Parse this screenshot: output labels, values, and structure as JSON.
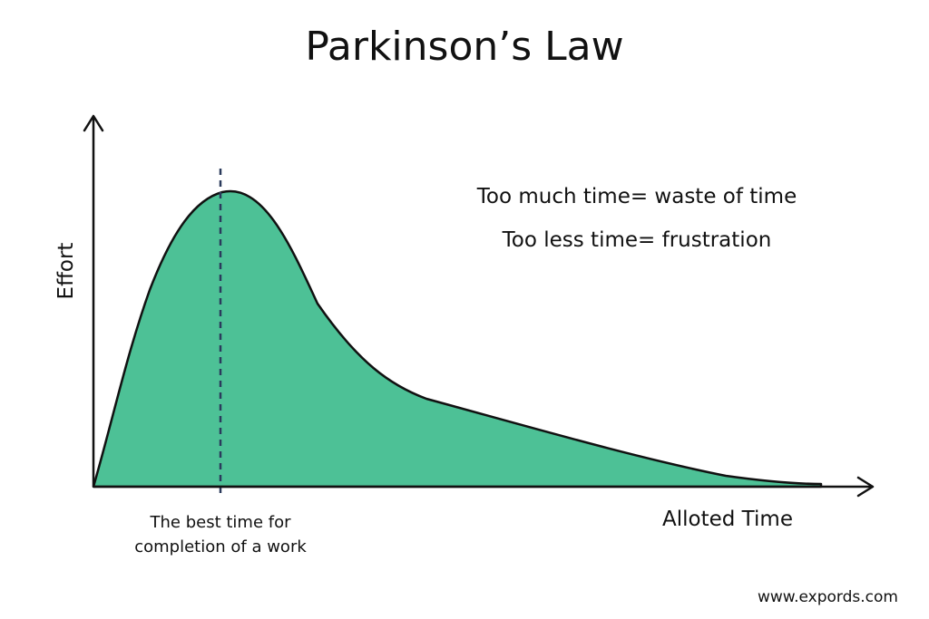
{
  "title": "Parkinson’s Law",
  "notes": [
    "Too much time= waste of time",
    "Too less time= frustration"
  ],
  "y_axis_label": "Effort",
  "x_axis_label": "Alloted Time",
  "best_time_label": {
    "line1": "The best time for",
    "line2": "completion of a work"
  },
  "footer": "www.expords.com",
  "colors": {
    "fill": "#4dc196",
    "stroke": "#111111",
    "dashed_line": "#2b3a5c"
  }
}
